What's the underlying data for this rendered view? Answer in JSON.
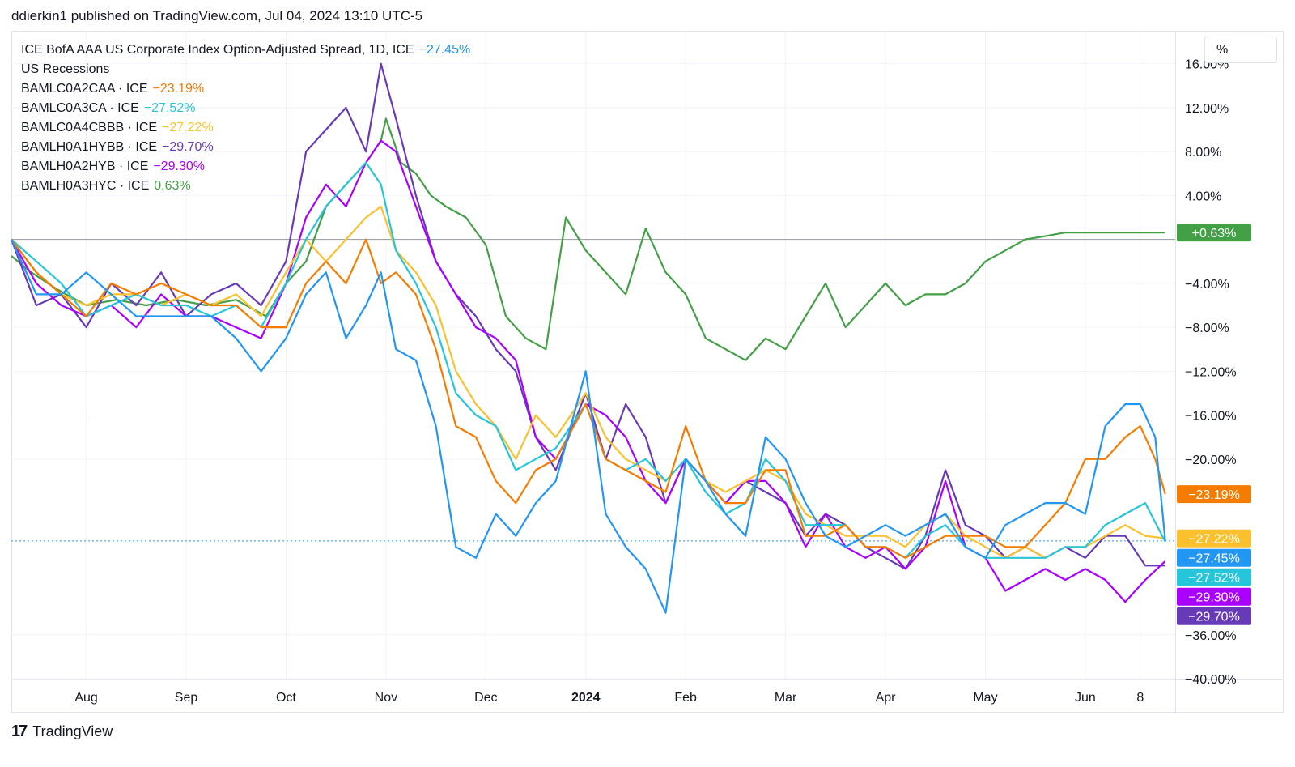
{
  "header": {
    "publisher": "ddierkin1 published on TradingView.com, Jul 04, 2024 13:10 UTC-5"
  },
  "legend": [
    {
      "name": "ICE BofA AAA US Corporate Index Option-Adjusted Spread, 1D, ICE",
      "value": "−27.45%",
      "color": "#2196f3"
    },
    {
      "name": "US Recessions",
      "value": "",
      "color": "#131722"
    },
    {
      "name": "BAMLC0A2CAA · ICE",
      "value": "−23.19%",
      "color": "#f57c00"
    },
    {
      "name": "BAMLC0A3CA · ICE",
      "value": "−27.52%",
      "color": "#26c6da"
    },
    {
      "name": "BAMLC0A4CBBB · ICE",
      "value": "−27.22%",
      "color": "#fbc02d"
    },
    {
      "name": "BAMLH0A1HYBB · ICE",
      "value": "−29.70%",
      "color": "#673ab7"
    },
    {
      "name": "BAMLH0A2HYB · ICE",
      "value": "−29.30%",
      "color": "#aa00ff"
    },
    {
      "name": "BAMLH0A3HYC · ICE",
      "value": "0.63%",
      "color": "#43a047"
    }
  ],
  "scale_button": {
    "label": "%"
  },
  "footer": {
    "logo": "17",
    "brand": "TradingView"
  },
  "chart_data": {
    "type": "line",
    "title": "ICE BofA AAA US Corporate Index Option-Adjusted Spread, 1D, ICE",
    "x_unit": "months from Aug 1, 2023",
    "xlim": [
      -0.75,
      10.9
    ],
    "ylim": [
      -40,
      19
    ],
    "y_ticks": [
      16,
      12,
      8,
      4,
      -4,
      -8,
      -12,
      -16,
      -20,
      -36,
      -40
    ],
    "y_tick_labels": [
      "16.00%",
      "12.00%",
      "8.00%",
      "4.00%",
      "−4.00%",
      "−8.00%",
      "−12.00%",
      "−16.00%",
      "−20.00%",
      "−36.00%",
      "−40.00%"
    ],
    "x_ticks": [
      0,
      1,
      2,
      3,
      4,
      5,
      6,
      7,
      8,
      9,
      10,
      10.55
    ],
    "x_tick_labels": [
      "Aug",
      "Sep",
      "Oct",
      "Nov",
      "Dec",
      "2024",
      "Feb",
      "Mar",
      "Apr",
      "May",
      "Jun",
      "8"
    ],
    "zero_line": 0,
    "last_value_line": -27.45,
    "series": [
      {
        "name": "BAMLH0A3HYC",
        "color": "#43a047",
        "last_label": "+0.63%",
        "x": [
          -0.75,
          -0.55,
          -0.3,
          0,
          0.3,
          0.6,
          0.9,
          1.2,
          1.5,
          1.8,
          2.0,
          2.2,
          2.4,
          2.6,
          2.8,
          2.95,
          3.0,
          3.15,
          3.3,
          3.45,
          3.6,
          3.8,
          4.0,
          4.2,
          4.4,
          4.6,
          4.8,
          5.0,
          5.2,
          5.4,
          5.6,
          5.8,
          6.0,
          6.2,
          6.4,
          6.6,
          6.8,
          7.0,
          7.2,
          7.4,
          7.6,
          7.8,
          8.0,
          8.2,
          8.4,
          8.6,
          8.8,
          9.0,
          9.2,
          9.4,
          9.6,
          9.8,
          10.0,
          10.2,
          10.4,
          10.6,
          10.8
        ],
        "values": [
          -1.5,
          -3,
          -4.5,
          -6,
          -5.5,
          -6,
          -5.5,
          -6,
          -5.5,
          -7,
          -4,
          -2,
          3,
          5,
          7,
          9,
          11,
          7,
          6,
          4,
          3,
          2,
          -0.5,
          -7,
          -9,
          -10,
          2,
          -1,
          -3,
          -5,
          1,
          -3,
          -5,
          -9,
          -10,
          -11,
          -9,
          -10,
          -7,
          -4,
          -8,
          -6,
          -4,
          -6,
          -5,
          -5,
          -4,
          -2,
          -1,
          0,
          0.3,
          0.63,
          0.63,
          0.63,
          0.63,
          0.63,
          0.63
        ]
      },
      {
        "name": "BAMLH0A1HYBB",
        "color": "#673ab7",
        "last_label": "−29.70%",
        "x": [
          -0.75,
          -0.5,
          -0.25,
          0,
          0.25,
          0.5,
          0.75,
          1.0,
          1.25,
          1.5,
          1.75,
          2.0,
          2.2,
          2.4,
          2.6,
          2.8,
          2.95,
          3.1,
          3.3,
          3.5,
          3.7,
          3.9,
          4.1,
          4.3,
          4.5,
          4.7,
          5.0,
          5.2,
          5.4,
          5.6,
          5.8,
          6.0,
          6.2,
          6.4,
          6.6,
          6.8,
          7.0,
          7.2,
          7.4,
          7.6,
          7.8,
          8.0,
          8.2,
          8.4,
          8.6,
          8.8,
          9.0,
          9.2,
          9.4,
          9.6,
          9.8,
          10.0,
          10.2,
          10.4,
          10.6,
          10.8
        ],
        "values": [
          0,
          -6,
          -5,
          -8,
          -4,
          -6,
          -3,
          -7,
          -5,
          -4,
          -6,
          -2,
          8,
          10,
          12,
          8,
          16,
          11,
          4,
          -2,
          -5,
          -7,
          -10,
          -12,
          -18,
          -21,
          -14,
          -20,
          -15,
          -18,
          -24,
          -20,
          -22,
          -24,
          -22,
          -23,
          -24,
          -27,
          -25,
          -26,
          -28,
          -29,
          -30,
          -27,
          -21,
          -26,
          -27,
          -29,
          -28,
          -29,
          -28,
          -29,
          -27,
          -27,
          -29.7,
          -29.7
        ]
      },
      {
        "name": "BAMLH0A2HYB",
        "color": "#aa00ff",
        "last_label": "−29.30%",
        "x": [
          -0.75,
          -0.5,
          -0.25,
          0,
          0.25,
          0.5,
          0.75,
          1.0,
          1.25,
          1.5,
          1.75,
          2.0,
          2.2,
          2.4,
          2.6,
          2.8,
          2.95,
          3.1,
          3.3,
          3.5,
          3.7,
          3.9,
          4.1,
          4.3,
          4.5,
          4.7,
          5.0,
          5.2,
          5.4,
          5.6,
          5.8,
          6.0,
          6.2,
          6.4,
          6.6,
          6.8,
          7.0,
          7.2,
          7.4,
          7.6,
          7.8,
          8.0,
          8.2,
          8.4,
          8.6,
          8.8,
          9.0,
          9.2,
          9.4,
          9.6,
          9.8,
          10.0,
          10.2,
          10.4,
          10.6,
          10.8
        ],
        "values": [
          0,
          -4,
          -6,
          -7,
          -6,
          -8,
          -5,
          -7,
          -7,
          -8,
          -9,
          -4,
          2,
          5,
          3,
          7,
          9,
          8,
          3,
          -2,
          -5,
          -8,
          -9,
          -11,
          -18,
          -20,
          -15,
          -16,
          -18,
          -22,
          -24,
          -20,
          -22,
          -24,
          -22,
          -22,
          -24,
          -28,
          -25,
          -28,
          -29,
          -28,
          -30,
          -28,
          -22,
          -28,
          -29,
          -32,
          -31,
          -30,
          -31,
          -30,
          -31,
          -33,
          -31,
          -29.3
        ]
      },
      {
        "name": "BAMLC0A4CBBB",
        "color": "#fbc02d",
        "last_label": "−27.22%",
        "x": [
          -0.75,
          -0.5,
          -0.25,
          0,
          0.25,
          0.5,
          0.75,
          1.0,
          1.25,
          1.5,
          1.75,
          2.0,
          2.2,
          2.4,
          2.6,
          2.8,
          2.95,
          3.1,
          3.3,
          3.5,
          3.7,
          3.9,
          4.1,
          4.3,
          4.5,
          4.7,
          5.0,
          5.2,
          5.4,
          5.6,
          5.8,
          6.0,
          6.2,
          6.4,
          6.6,
          6.8,
          7.0,
          7.2,
          7.4,
          7.6,
          7.8,
          8.0,
          8.2,
          8.4,
          8.6,
          8.8,
          9.0,
          9.2,
          9.4,
          9.6,
          9.8,
          10.0,
          10.2,
          10.4,
          10.6,
          10.8
        ],
        "values": [
          0,
          -3,
          -5,
          -6,
          -5,
          -5,
          -6,
          -5,
          -6,
          -5,
          -7,
          -3,
          0,
          -2,
          0,
          2,
          3,
          -1,
          -3,
          -6,
          -12,
          -15,
          -17,
          -20,
          -16,
          -18,
          -14,
          -18,
          -20,
          -21,
          -22,
          -20,
          -22,
          -23,
          -22,
          -21,
          -22,
          -25,
          -26,
          -27,
          -27,
          -27,
          -28,
          -26,
          -25,
          -27,
          -28,
          -29,
          -28,
          -29,
          -28,
          -28,
          -27,
          -26,
          -27,
          -27.22
        ]
      },
      {
        "name": "BAMLC0A3CA",
        "color": "#26c6da",
        "last_label": "−27.52%",
        "x": [
          -0.75,
          -0.5,
          -0.25,
          0,
          0.25,
          0.5,
          0.75,
          1.0,
          1.25,
          1.5,
          1.75,
          2.0,
          2.2,
          2.4,
          2.6,
          2.8,
          2.95,
          3.1,
          3.3,
          3.5,
          3.7,
          3.9,
          4.1,
          4.3,
          4.5,
          4.7,
          5.0,
          5.2,
          5.4,
          5.6,
          5.8,
          6.0,
          6.2,
          6.4,
          6.6,
          6.8,
          7.0,
          7.2,
          7.4,
          7.6,
          7.8,
          8.0,
          8.2,
          8.4,
          8.6,
          8.8,
          9.0,
          9.2,
          9.4,
          9.6,
          9.8,
          10.0,
          10.2,
          10.4,
          10.6,
          10.8
        ],
        "values": [
          0,
          -2,
          -4,
          -7,
          -6,
          -5,
          -6,
          -6,
          -7,
          -6,
          -8,
          -4,
          0,
          3,
          5,
          7,
          5,
          -1,
          -4,
          -8,
          -14,
          -16,
          -17,
          -21,
          -20,
          -19,
          -15,
          -20,
          -21,
          -20,
          -22,
          -20,
          -23,
          -25,
          -24,
          -20,
          -22,
          -26,
          -26,
          -26,
          -28,
          -28,
          -29,
          -27,
          -26,
          -28,
          -29,
          -29,
          -29,
          -29,
          -28,
          -28,
          -26,
          -25,
          -24,
          -27.52
        ]
      },
      {
        "name": "BAMLC0A2CAA",
        "color": "#f57c00",
        "last_label": "−23.19%",
        "x": [
          -0.75,
          -0.5,
          -0.25,
          0,
          0.25,
          0.5,
          0.75,
          1.0,
          1.25,
          1.5,
          1.75,
          2.0,
          2.2,
          2.4,
          2.6,
          2.8,
          2.95,
          3.1,
          3.3,
          3.5,
          3.7,
          3.9,
          4.1,
          4.3,
          4.5,
          4.7,
          5.0,
          5.2,
          5.4,
          5.6,
          5.8,
          6.0,
          6.2,
          6.4,
          6.6,
          6.8,
          7.0,
          7.2,
          7.4,
          7.6,
          7.8,
          8.0,
          8.2,
          8.4,
          8.6,
          8.8,
          9.0,
          9.2,
          9.4,
          9.6,
          9.8,
          10.0,
          10.2,
          10.4,
          10.55,
          10.7,
          10.8
        ],
        "values": [
          0,
          -3,
          -5,
          -7,
          -4,
          -5,
          -4,
          -5,
          -6,
          -6,
          -8,
          -8,
          -4,
          -2,
          -4,
          0,
          -4,
          -3,
          -5,
          -10,
          -17,
          -18,
          -22,
          -24,
          -21,
          -20,
          -15,
          -20,
          -21,
          -22,
          -23,
          -17,
          -22,
          -24,
          -24,
          -21,
          -21,
          -27,
          -27,
          -26,
          -28,
          -28,
          -29,
          -28,
          -27,
          -27,
          -27,
          -28,
          -28,
          -26,
          -24,
          -20,
          -20,
          -18,
          -17,
          -20,
          -23.19
        ]
      },
      {
        "name": "ICE BofA AAA US Corporate Index Option-Adjusted Spread",
        "color": "#2196f3",
        "last_label": "−27.45%",
        "x": [
          -0.75,
          -0.5,
          -0.25,
          0,
          0.25,
          0.5,
          0.75,
          1.0,
          1.25,
          1.5,
          1.75,
          2.0,
          2.2,
          2.4,
          2.6,
          2.8,
          2.95,
          3.1,
          3.3,
          3.5,
          3.7,
          3.9,
          4.1,
          4.3,
          4.5,
          4.7,
          5.0,
          5.2,
          5.4,
          5.6,
          5.8,
          6.0,
          6.2,
          6.4,
          6.6,
          6.8,
          7.0,
          7.2,
          7.4,
          7.6,
          7.8,
          8.0,
          8.2,
          8.4,
          8.6,
          8.8,
          9.0,
          9.2,
          9.4,
          9.6,
          9.8,
          10.0,
          10.2,
          10.4,
          10.55,
          10.7,
          10.8
        ],
        "values": [
          0,
          -5,
          -5,
          -3,
          -5,
          -7,
          -7,
          -7,
          -7,
          -9,
          -12,
          -9,
          -5,
          -3,
          -9,
          -6,
          -3,
          -10,
          -11,
          -17,
          -28,
          -29,
          -25,
          -27,
          -24,
          -22,
          -12,
          -25,
          -28,
          -30,
          -34,
          -20,
          -22,
          -25,
          -27,
          -18,
          -20,
          -24,
          -27,
          -28,
          -27,
          -26,
          -27,
          -26,
          -25,
          -28,
          -29,
          -26,
          -25,
          -24,
          -24,
          -25,
          -17,
          -15,
          -15,
          -18,
          -27.45
        ]
      }
    ]
  }
}
